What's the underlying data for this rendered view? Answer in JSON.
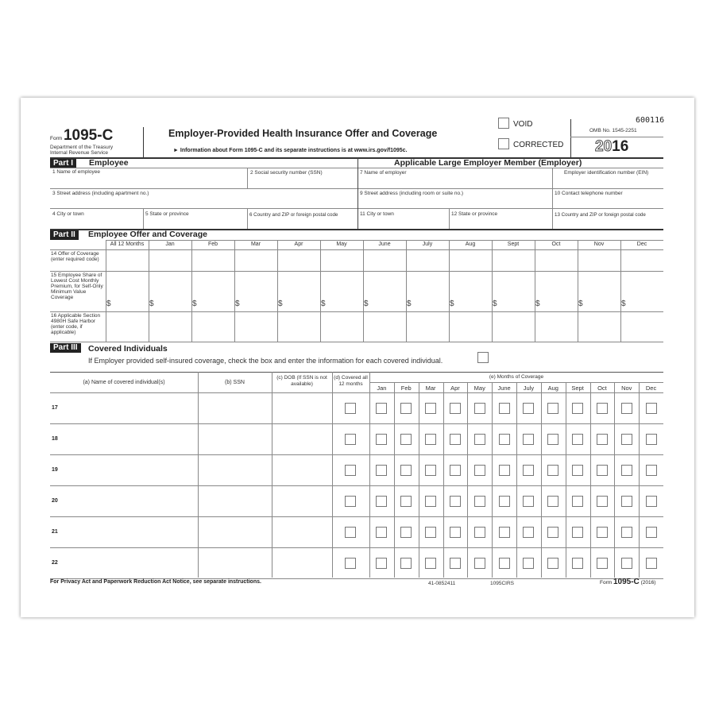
{
  "header": {
    "form_word": "Form",
    "form_number": "1095-C",
    "dept": "Department of the Treasury",
    "irs": "Internal Revenue Service",
    "title": "Employer-Provided Health Insurance Offer and Coverage",
    "info": "► Information about Form 1095-C and its separate instructions is at www.irs.gov/f1095c.",
    "void": "VOID",
    "corrected": "CORRECTED",
    "control_number": "600116",
    "omb": "OMB No. 1545-2251",
    "year_outline": "20",
    "year_bold": "16"
  },
  "part1": {
    "badge": "Part I",
    "title": "Employee",
    "employer_title": "Applicable Large Employer Member (Employer)",
    "fields": {
      "f1": "1  Name of employee",
      "f2": "2  Social security number (SSN)",
      "f3": "3  Street address (including apartment no.)",
      "f4": "4  City or town",
      "f5": "5  State or province",
      "f6": "6 Country and ZIP or foreign postal code",
      "f7": "7  Name of employer",
      "fein": "Employer identification number (EIN)",
      "f9": "9  Street address (including room or suite no.)",
      "f10": "10 Contact telephone number",
      "f11": "11 City or town",
      "f12": "12  State or province",
      "f13": "13 Country and ZIP or foreign postal code"
    }
  },
  "part2": {
    "badge": "Part II",
    "title": "Employee Offer and Coverage",
    "columns": [
      "All 12 Months",
      "Jan",
      "Feb",
      "Mar",
      "Apr",
      "May",
      "June",
      "July",
      "Aug",
      "Sept",
      "Oct",
      "Nov",
      "Dec"
    ],
    "rows": [
      {
        "label": "14 Offer of Coverage (enter required code)"
      },
      {
        "label": "15 Employee Share of Lowest Cost Monthly Premium, for Self-Only Minimum Value Coverage",
        "prefix": "$"
      },
      {
        "label": "16 Applicable Section 4980H Safe Harbor (enter code, if applicable)"
      }
    ]
  },
  "part3": {
    "badge": "Part III",
    "title": "Covered Individuals",
    "instruction": "If Employer provided self-insured coverage, check the box and enter the information for each covered individual.",
    "col_a": "(a) Name of covered individual(s)",
    "col_b": "(b) SSN",
    "col_c": "(c) DOB (If SSN is not available)",
    "col_d": "(d) Covered all 12 months",
    "col_e": "(e) Months of Coverage",
    "months": [
      "Jan",
      "Feb",
      "Mar",
      "Apr",
      "May",
      "June",
      "July",
      "Aug",
      "Sept",
      "Oct",
      "Nov",
      "Dec"
    ],
    "rows": [
      "17",
      "18",
      "19",
      "20",
      "21",
      "22"
    ]
  },
  "footer": {
    "notice": "For Privacy Act and Paperwork Reduction Act Notice, see separate instructions.",
    "cat": "41-0852411",
    "code": "1095CIRS",
    "form_word": "Form",
    "form_number": "1095-C",
    "year": "(2016)"
  }
}
